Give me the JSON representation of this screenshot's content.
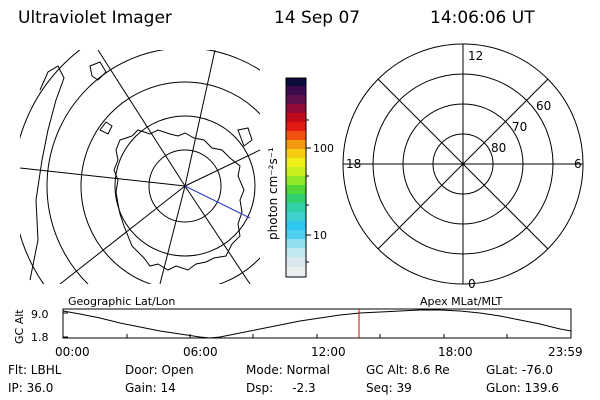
{
  "header": {
    "title": "Ultraviolet Imager",
    "date": "14 Sep 07",
    "time": "14:06:06 UT"
  },
  "colorbar": {
    "unit_label": "photon cm⁻²s⁻¹",
    "tick_100": "100",
    "tick_10": "10"
  },
  "polar_plot": {
    "label_top": "12",
    "label_left": "18",
    "label_right": "6",
    "label_bottom": "0",
    "ring_labels": [
      "60",
      "70",
      "80"
    ]
  },
  "left_map": {
    "subtitle": "Geographic Lat/Lon"
  },
  "right_map": {
    "subtitle": "Apex MLat/MLT"
  },
  "altitude_plot": {
    "ylabel": "GC Alt",
    "ytick_top": "9.0",
    "ytick_bottom": "1.8",
    "xticks": [
      "00:00",
      "06:00",
      "12:00",
      "18:00",
      "23:59"
    ],
    "marker_color": "#d00000"
  },
  "status": {
    "flt": "Flt: LBHL",
    "ip": "IP: 36.0",
    "door": "Door: Open",
    "gain": "Gain: 14",
    "mode": "Mode: Normal",
    "dsp": "Dsp:     -2.3",
    "gc_alt": "GC Alt: 8.6 Re",
    "seq": "Seq: 39",
    "glat": "GLat: -76.0",
    "glon": "GLon: 139.6"
  }
}
